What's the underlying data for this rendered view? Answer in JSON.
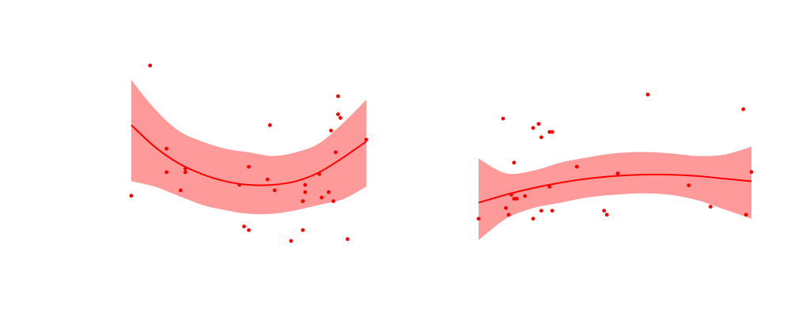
{
  "colors": {
    "point": "#ff0000",
    "line": "#ff0000",
    "band": "#ff9a9a",
    "background": "#ffffff"
  },
  "chart_data": [
    {
      "type": "scatter",
      "grid": false,
      "axes_visible": false,
      "xlim": [
        0,
        1
      ],
      "ylim": [
        0,
        1
      ],
      "points": [
        {
          "x": 0.0,
          "y": 0.25
        },
        {
          "x": 0.08,
          "y": 0.97
        },
        {
          "x": 0.15,
          "y": 0.51
        },
        {
          "x": 0.15,
          "y": 0.38
        },
        {
          "x": 0.21,
          "y": 0.28
        },
        {
          "x": 0.23,
          "y": 0.4
        },
        {
          "x": 0.23,
          "y": 0.38
        },
        {
          "x": 0.46,
          "y": 0.31
        },
        {
          "x": 0.48,
          "y": 0.08
        },
        {
          "x": 0.5,
          "y": 0.06
        },
        {
          "x": 0.5,
          "y": 0.41
        },
        {
          "x": 0.59,
          "y": 0.64
        },
        {
          "x": 0.58,
          "y": 0.34
        },
        {
          "x": 0.61,
          "y": 0.28
        },
        {
          "x": 0.68,
          "y": 0.0
        },
        {
          "x": 0.73,
          "y": 0.22
        },
        {
          "x": 0.73,
          "y": 0.06
        },
        {
          "x": 0.74,
          "y": 0.27
        },
        {
          "x": 0.74,
          "y": 0.31
        },
        {
          "x": 0.8,
          "y": 0.37
        },
        {
          "x": 0.81,
          "y": 0.24
        },
        {
          "x": 0.84,
          "y": 0.27
        },
        {
          "x": 0.85,
          "y": 0.61
        },
        {
          "x": 0.86,
          "y": 0.22
        },
        {
          "x": 0.87,
          "y": 0.49
        },
        {
          "x": 0.88,
          "y": 0.7
        },
        {
          "x": 0.88,
          "y": 0.8
        },
        {
          "x": 0.89,
          "y": 0.68
        },
        {
          "x": 0.92,
          "y": 0.01
        },
        {
          "x": 1.0,
          "y": 0.56
        }
      ],
      "fit": {
        "x": [
          0.0,
          0.1,
          0.2,
          0.3,
          0.4,
          0.5,
          0.6,
          0.7,
          0.8,
          0.9,
          1.0
        ],
        "y": [
          0.64,
          0.52,
          0.43,
          0.37,
          0.33,
          0.31,
          0.31,
          0.33,
          0.38,
          0.46,
          0.55
        ],
        "lower": [
          0.33,
          0.3,
          0.25,
          0.2,
          0.17,
          0.15,
          0.15,
          0.17,
          0.2,
          0.23,
          0.3
        ],
        "upper": [
          0.89,
          0.73,
          0.61,
          0.55,
          0.51,
          0.49,
          0.47,
          0.49,
          0.54,
          0.65,
          0.78
        ]
      }
    },
    {
      "type": "scatter",
      "grid": false,
      "axes_visible": false,
      "xlim": [
        0,
        1
      ],
      "ylim": [
        0,
        1
      ],
      "points": [
        {
          "x": 0.0,
          "y": 0.06
        },
        {
          "x": 0.09,
          "y": 0.81
        },
        {
          "x": 0.1,
          "y": 0.14
        },
        {
          "x": 0.11,
          "y": 0.09
        },
        {
          "x": 0.12,
          "y": 0.24
        },
        {
          "x": 0.13,
          "y": 0.21
        },
        {
          "x": 0.13,
          "y": 0.48
        },
        {
          "x": 0.14,
          "y": 0.21
        },
        {
          "x": 0.17,
          "y": 0.23
        },
        {
          "x": 0.2,
          "y": 0.74
        },
        {
          "x": 0.2,
          "y": 0.06
        },
        {
          "x": 0.22,
          "y": 0.77
        },
        {
          "x": 0.23,
          "y": 0.67
        },
        {
          "x": 0.23,
          "y": 0.12
        },
        {
          "x": 0.26,
          "y": 0.71
        },
        {
          "x": 0.26,
          "y": 0.3
        },
        {
          "x": 0.27,
          "y": 0.12
        },
        {
          "x": 0.27,
          "y": 0.71
        },
        {
          "x": 0.36,
          "y": 0.45
        },
        {
          "x": 0.46,
          "y": 0.12
        },
        {
          "x": 0.47,
          "y": 0.09
        },
        {
          "x": 0.51,
          "y": 0.4
        },
        {
          "x": 0.62,
          "y": 0.99
        },
        {
          "x": 0.77,
          "y": 0.31
        },
        {
          "x": 0.85,
          "y": 0.15
        },
        {
          "x": 0.97,
          "y": 0.88
        },
        {
          "x": 0.98,
          "y": 0.09
        },
        {
          "x": 1.0,
          "y": 0.41
        }
      ],
      "fit": {
        "x": [
          0.0,
          0.1,
          0.2,
          0.3,
          0.4,
          0.5,
          0.6,
          0.7,
          0.8,
          0.9,
          1.0
        ],
        "y": [
          0.18,
          0.24,
          0.29,
          0.33,
          0.36,
          0.38,
          0.39,
          0.39,
          0.38,
          0.36,
          0.34
        ],
        "lower": [
          -0.1,
          0.06,
          0.14,
          0.18,
          0.22,
          0.24,
          0.25,
          0.24,
          0.2,
          0.13,
          0.06
        ],
        "upper": [
          0.51,
          0.4,
          0.42,
          0.48,
          0.52,
          0.55,
          0.56,
          0.55,
          0.53,
          0.54,
          0.6
        ]
      }
    }
  ]
}
